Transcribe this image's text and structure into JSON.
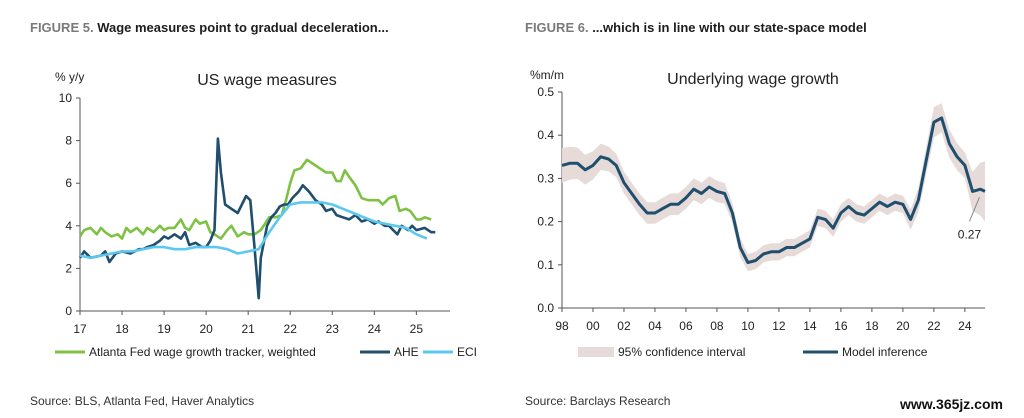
{
  "figures": [
    {
      "number_label": "FIGURE 5.",
      "caption": " Wage measures point to gradual deceleration...",
      "source": "Source: BLS, Atlanta Fed, Haver Analytics"
    },
    {
      "number_label": "FIGURE 6.",
      "caption": " ...which is in line with our state-space model",
      "source": "Source: Barclays Research"
    }
  ],
  "watermark": "www.365jz.com",
  "chart_data": [
    {
      "type": "line",
      "title": "US wage measures",
      "ylabel": "% y/y",
      "xlabel": "",
      "xlim": [
        17,
        25.8
      ],
      "ylim": [
        0,
        10
      ],
      "x_ticks": [
        17,
        18,
        19,
        20,
        21,
        22,
        23,
        24,
        25
      ],
      "x_tick_labels": [
        "17",
        "18",
        "19",
        "20",
        "21",
        "22",
        "23",
        "24",
        "25"
      ],
      "y_ticks": [
        0,
        2,
        4,
        6,
        8,
        10
      ],
      "grid": false,
      "legend_position": "bottom",
      "series": [
        {
          "name": "Atlanta Fed wage growth tracker, weighted",
          "color": "#7dc242",
          "points": [
            [
              17.0,
              3.5
            ],
            [
              17.1,
              3.8
            ],
            [
              17.25,
              3.9
            ],
            [
              17.4,
              3.6
            ],
            [
              17.5,
              3.9
            ],
            [
              17.6,
              3.7
            ],
            [
              17.75,
              3.5
            ],
            [
              17.9,
              3.6
            ],
            [
              18.0,
              3.4
            ],
            [
              18.1,
              3.9
            ],
            [
              18.2,
              3.7
            ],
            [
              18.35,
              3.9
            ],
            [
              18.5,
              3.6
            ],
            [
              18.6,
              3.9
            ],
            [
              18.75,
              3.7
            ],
            [
              18.9,
              4.0
            ],
            [
              19.0,
              3.8
            ],
            [
              19.1,
              3.9
            ],
            [
              19.25,
              3.9
            ],
            [
              19.4,
              4.3
            ],
            [
              19.5,
              3.9
            ],
            [
              19.6,
              3.8
            ],
            [
              19.75,
              4.3
            ],
            [
              19.85,
              4.1
            ],
            [
              20.0,
              4.2
            ],
            [
              20.1,
              3.7
            ],
            [
              20.2,
              3.6
            ],
            [
              20.35,
              3.4
            ],
            [
              20.5,
              3.8
            ],
            [
              20.6,
              4.0
            ],
            [
              20.75,
              3.5
            ],
            [
              20.9,
              3.7
            ],
            [
              21.0,
              3.6
            ],
            [
              21.15,
              3.6
            ],
            [
              21.3,
              3.8
            ],
            [
              21.5,
              4.4
            ],
            [
              21.65,
              4.4
            ],
            [
              21.8,
              4.5
            ],
            [
              21.9,
              5.2
            ],
            [
              22.0,
              6.0
            ],
            [
              22.1,
              6.6
            ],
            [
              22.25,
              6.7
            ],
            [
              22.4,
              7.1
            ],
            [
              22.55,
              6.9
            ],
            [
              22.7,
              6.7
            ],
            [
              22.85,
              6.5
            ],
            [
              23.0,
              6.5
            ],
            [
              23.1,
              6.1
            ],
            [
              23.2,
              6.1
            ],
            [
              23.3,
              6.6
            ],
            [
              23.4,
              6.3
            ],
            [
              23.55,
              5.9
            ],
            [
              23.7,
              5.3
            ],
            [
              23.85,
              5.2
            ],
            [
              24.0,
              5.2
            ],
            [
              24.1,
              5.2
            ],
            [
              24.2,
              5.0
            ],
            [
              24.35,
              5.3
            ],
            [
              24.5,
              5.4
            ],
            [
              24.6,
              4.7
            ],
            [
              24.75,
              4.8
            ],
            [
              24.85,
              4.7
            ],
            [
              25.0,
              4.3
            ],
            [
              25.1,
              4.3
            ],
            [
              25.2,
              4.4
            ],
            [
              25.35,
              4.3
            ]
          ]
        },
        {
          "name": "AHE",
          "color": "#1f4e6e",
          "points": [
            [
              17.0,
              2.5
            ],
            [
              17.1,
              2.8
            ],
            [
              17.25,
              2.5
            ],
            [
              17.5,
              2.6
            ],
            [
              17.6,
              2.8
            ],
            [
              17.7,
              2.3
            ],
            [
              17.85,
              2.7
            ],
            [
              18.0,
              2.8
            ],
            [
              18.2,
              2.7
            ],
            [
              18.4,
              2.9
            ],
            [
              18.5,
              2.9
            ],
            [
              18.6,
              3.0
            ],
            [
              18.75,
              3.1
            ],
            [
              18.9,
              3.3
            ],
            [
              19.0,
              3.5
            ],
            [
              19.1,
              3.4
            ],
            [
              19.25,
              3.6
            ],
            [
              19.4,
              3.4
            ],
            [
              19.5,
              3.7
            ],
            [
              19.6,
              3.1
            ],
            [
              19.75,
              3.2
            ],
            [
              19.9,
              3.0
            ],
            [
              20.0,
              3.0
            ],
            [
              20.1,
              3.3
            ],
            [
              20.2,
              3.8
            ],
            [
              20.28,
              8.1
            ],
            [
              20.35,
              6.5
            ],
            [
              20.45,
              5.0
            ],
            [
              20.6,
              4.8
            ],
            [
              20.75,
              4.6
            ],
            [
              20.85,
              5.0
            ],
            [
              20.95,
              5.4
            ],
            [
              21.05,
              5.2
            ],
            [
              21.15,
              3.0
            ],
            [
              21.25,
              0.6
            ],
            [
              21.3,
              2.5
            ],
            [
              21.45,
              4.0
            ],
            [
              21.55,
              4.4
            ],
            [
              21.65,
              4.6
            ],
            [
              21.75,
              4.9
            ],
            [
              21.85,
              5.0
            ],
            [
              21.95,
              5.0
            ],
            [
              22.05,
              5.3
            ],
            [
              22.2,
              5.6
            ],
            [
              22.3,
              5.9
            ],
            [
              22.45,
              5.6
            ],
            [
              22.6,
              5.2
            ],
            [
              22.75,
              5.0
            ],
            [
              22.85,
              4.7
            ],
            [
              23.0,
              4.8
            ],
            [
              23.1,
              4.5
            ],
            [
              23.25,
              4.4
            ],
            [
              23.4,
              4.3
            ],
            [
              23.55,
              4.5
            ],
            [
              23.7,
              4.2
            ],
            [
              23.85,
              4.3
            ],
            [
              24.0,
              4.1
            ],
            [
              24.1,
              4.2
            ],
            [
              24.25,
              4.0
            ],
            [
              24.35,
              4.0
            ],
            [
              24.45,
              3.8
            ],
            [
              24.55,
              3.6
            ],
            [
              24.65,
              4.0
            ],
            [
              24.8,
              3.8
            ],
            [
              24.9,
              4.0
            ],
            [
              25.0,
              3.8
            ],
            [
              25.2,
              3.9
            ],
            [
              25.35,
              3.7
            ],
            [
              25.45,
              3.7
            ]
          ]
        },
        {
          "name": "ECI",
          "color": "#5bc8f0",
          "points": [
            [
              17.0,
              2.6
            ],
            [
              17.25,
              2.5
            ],
            [
              17.5,
              2.6
            ],
            [
              17.75,
              2.7
            ],
            [
              18.0,
              2.8
            ],
            [
              18.25,
              2.8
            ],
            [
              18.5,
              2.9
            ],
            [
              18.75,
              3.0
            ],
            [
              19.0,
              3.0
            ],
            [
              19.25,
              2.9
            ],
            [
              19.5,
              2.9
            ],
            [
              19.75,
              3.0
            ],
            [
              20.0,
              3.0
            ],
            [
              20.25,
              3.0
            ],
            [
              20.5,
              2.9
            ],
            [
              20.75,
              2.7
            ],
            [
              21.0,
              2.8
            ],
            [
              21.25,
              2.9
            ],
            [
              21.5,
              3.7
            ],
            [
              21.75,
              4.4
            ],
            [
              22.0,
              5.0
            ],
            [
              22.25,
              5.1
            ],
            [
              22.5,
              5.1
            ],
            [
              22.75,
              5.1
            ],
            [
              23.0,
              5.0
            ],
            [
              23.25,
              4.8
            ],
            [
              23.5,
              4.6
            ],
            [
              23.75,
              4.4
            ],
            [
              24.0,
              4.2
            ],
            [
              24.25,
              4.1
            ],
            [
              24.5,
              4.0
            ],
            [
              24.75,
              3.9
            ],
            [
              25.0,
              3.6
            ],
            [
              25.25,
              3.4
            ]
          ]
        }
      ]
    },
    {
      "type": "line",
      "title": "Underlying wage growth",
      "ylabel": "%m/m",
      "xlabel": "",
      "xlim": [
        1998,
        2025.3
      ],
      "ylim": [
        0,
        0.5
      ],
      "x_ticks": [
        1998,
        2000,
        2002,
        2004,
        2006,
        2008,
        2010,
        2012,
        2014,
        2016,
        2018,
        2020,
        2022,
        2024
      ],
      "x_tick_labels": [
        "98",
        "00",
        "02",
        "04",
        "06",
        "08",
        "10",
        "12",
        "14",
        "16",
        "18",
        "20",
        "22",
        "24"
      ],
      "y_ticks": [
        0,
        0.1,
        0.2,
        0.3,
        0.4,
        0.5
      ],
      "y_tick_labels": [
        "0.0",
        "0.1",
        "0.2",
        "0.3",
        "0.4",
        "0.5"
      ],
      "grid": false,
      "legend_position": "bottom",
      "annotation": {
        "text": "0.27",
        "x": 2025.2,
        "y": 0.27
      },
      "series": [
        {
          "name": "95% confidence interval",
          "color": "#e6dbd8",
          "band_width": [
            [
              1998,
              0.04
            ],
            [
              2002,
              0.025
            ],
            [
              2008,
              0.025
            ],
            [
              2010,
              0.02
            ],
            [
              2014,
              0.02
            ],
            [
              2020,
              0.02
            ],
            [
              2022,
              0.035
            ],
            [
              2024,
              0.03
            ],
            [
              2025.3,
              0.07
            ]
          ]
        },
        {
          "name": "Model inference",
          "color": "#1f4e6e",
          "points": [
            [
              1998.0,
              0.33
            ],
            [
              1998.5,
              0.335
            ],
            [
              1999.0,
              0.335
            ],
            [
              1999.5,
              0.32
            ],
            [
              2000.0,
              0.33
            ],
            [
              2000.5,
              0.35
            ],
            [
              2001.0,
              0.345
            ],
            [
              2001.5,
              0.33
            ],
            [
              2002.0,
              0.29
            ],
            [
              2002.5,
              0.265
            ],
            [
              2003.0,
              0.24
            ],
            [
              2003.5,
              0.22
            ],
            [
              2004.0,
              0.22
            ],
            [
              2004.5,
              0.23
            ],
            [
              2005.0,
              0.24
            ],
            [
              2005.5,
              0.24
            ],
            [
              2006.0,
              0.255
            ],
            [
              2006.5,
              0.275
            ],
            [
              2007.0,
              0.265
            ],
            [
              2007.5,
              0.28
            ],
            [
              2008.0,
              0.27
            ],
            [
              2008.5,
              0.265
            ],
            [
              2009.0,
              0.22
            ],
            [
              2009.5,
              0.14
            ],
            [
              2010.0,
              0.105
            ],
            [
              2010.5,
              0.11
            ],
            [
              2011.0,
              0.125
            ],
            [
              2011.5,
              0.13
            ],
            [
              2012.0,
              0.13
            ],
            [
              2012.5,
              0.14
            ],
            [
              2013.0,
              0.14
            ],
            [
              2013.5,
              0.15
            ],
            [
              2014.0,
              0.16
            ],
            [
              2014.5,
              0.21
            ],
            [
              2015.0,
              0.205
            ],
            [
              2015.5,
              0.185
            ],
            [
              2016.0,
              0.22
            ],
            [
              2016.5,
              0.235
            ],
            [
              2017.0,
              0.22
            ],
            [
              2017.5,
              0.215
            ],
            [
              2018.0,
              0.23
            ],
            [
              2018.5,
              0.245
            ],
            [
              2019.0,
              0.235
            ],
            [
              2019.5,
              0.245
            ],
            [
              2020.0,
              0.24
            ],
            [
              2020.5,
              0.205
            ],
            [
              2021.0,
              0.25
            ],
            [
              2021.5,
              0.34
            ],
            [
              2022.0,
              0.43
            ],
            [
              2022.5,
              0.44
            ],
            [
              2023.0,
              0.38
            ],
            [
              2023.5,
              0.35
            ],
            [
              2024.0,
              0.33
            ],
            [
              2024.5,
              0.27
            ],
            [
              2025.0,
              0.275
            ],
            [
              2025.3,
              0.27
            ]
          ]
        }
      ]
    }
  ]
}
